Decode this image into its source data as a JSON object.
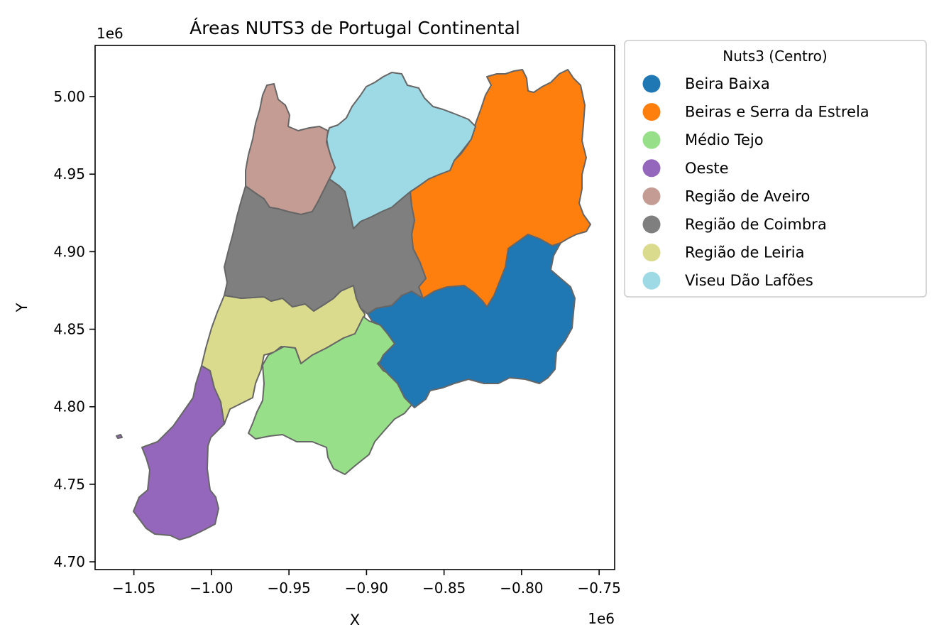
{
  "title": "Áreas NUTS3 de Portugal Continental",
  "xlabel": "X",
  "ylabel": "Y",
  "x_offset_label": "1e6",
  "y_offset_label": "1e6",
  "x_ticks": [
    {
      "value": -1.05,
      "label": "−1.05"
    },
    {
      "value": -1.0,
      "label": "−1.00"
    },
    {
      "value": -0.95,
      "label": "−0.95"
    },
    {
      "value": -0.9,
      "label": "−0.90"
    },
    {
      "value": -0.85,
      "label": "−0.85"
    },
    {
      "value": -0.8,
      "label": "−0.80"
    },
    {
      "value": -0.75,
      "label": "−0.75"
    }
  ],
  "y_ticks": [
    {
      "value": 4.7,
      "label": "4.70"
    },
    {
      "value": 4.75,
      "label": "4.75"
    },
    {
      "value": 4.8,
      "label": "4.80"
    },
    {
      "value": 4.85,
      "label": "4.85"
    },
    {
      "value": 4.9,
      "label": "4.90"
    },
    {
      "value": 4.95,
      "label": "4.95"
    },
    {
      "value": 5.0,
      "label": "5.00"
    }
  ],
  "xlim": [
    -1.075,
    -0.74
  ],
  "ylim": [
    4.695,
    5.033
  ],
  "legend": {
    "title": "Nuts3 (Centro)",
    "placement": "outside-right-top",
    "items": [
      {
        "label": "Beira Baixa",
        "color": "#1f77b4"
      },
      {
        "label": "Beiras e Serra da Estrela",
        "color": "#ff7f0e"
      },
      {
        "label": "Médio Tejo",
        "color": "#98df8a"
      },
      {
        "label": "Oeste",
        "color": "#9467bd"
      },
      {
        "label": "Região de Aveiro",
        "color": "#c49c94"
      },
      {
        "label": "Região de Coimbra",
        "color": "#7f7f7f"
      },
      {
        "label": "Região de Leiria",
        "color": "#dbdb8d"
      },
      {
        "label": "Viseu Dão Lafões",
        "color": "#9edae5"
      }
    ]
  },
  "border_color": "#666666"
}
